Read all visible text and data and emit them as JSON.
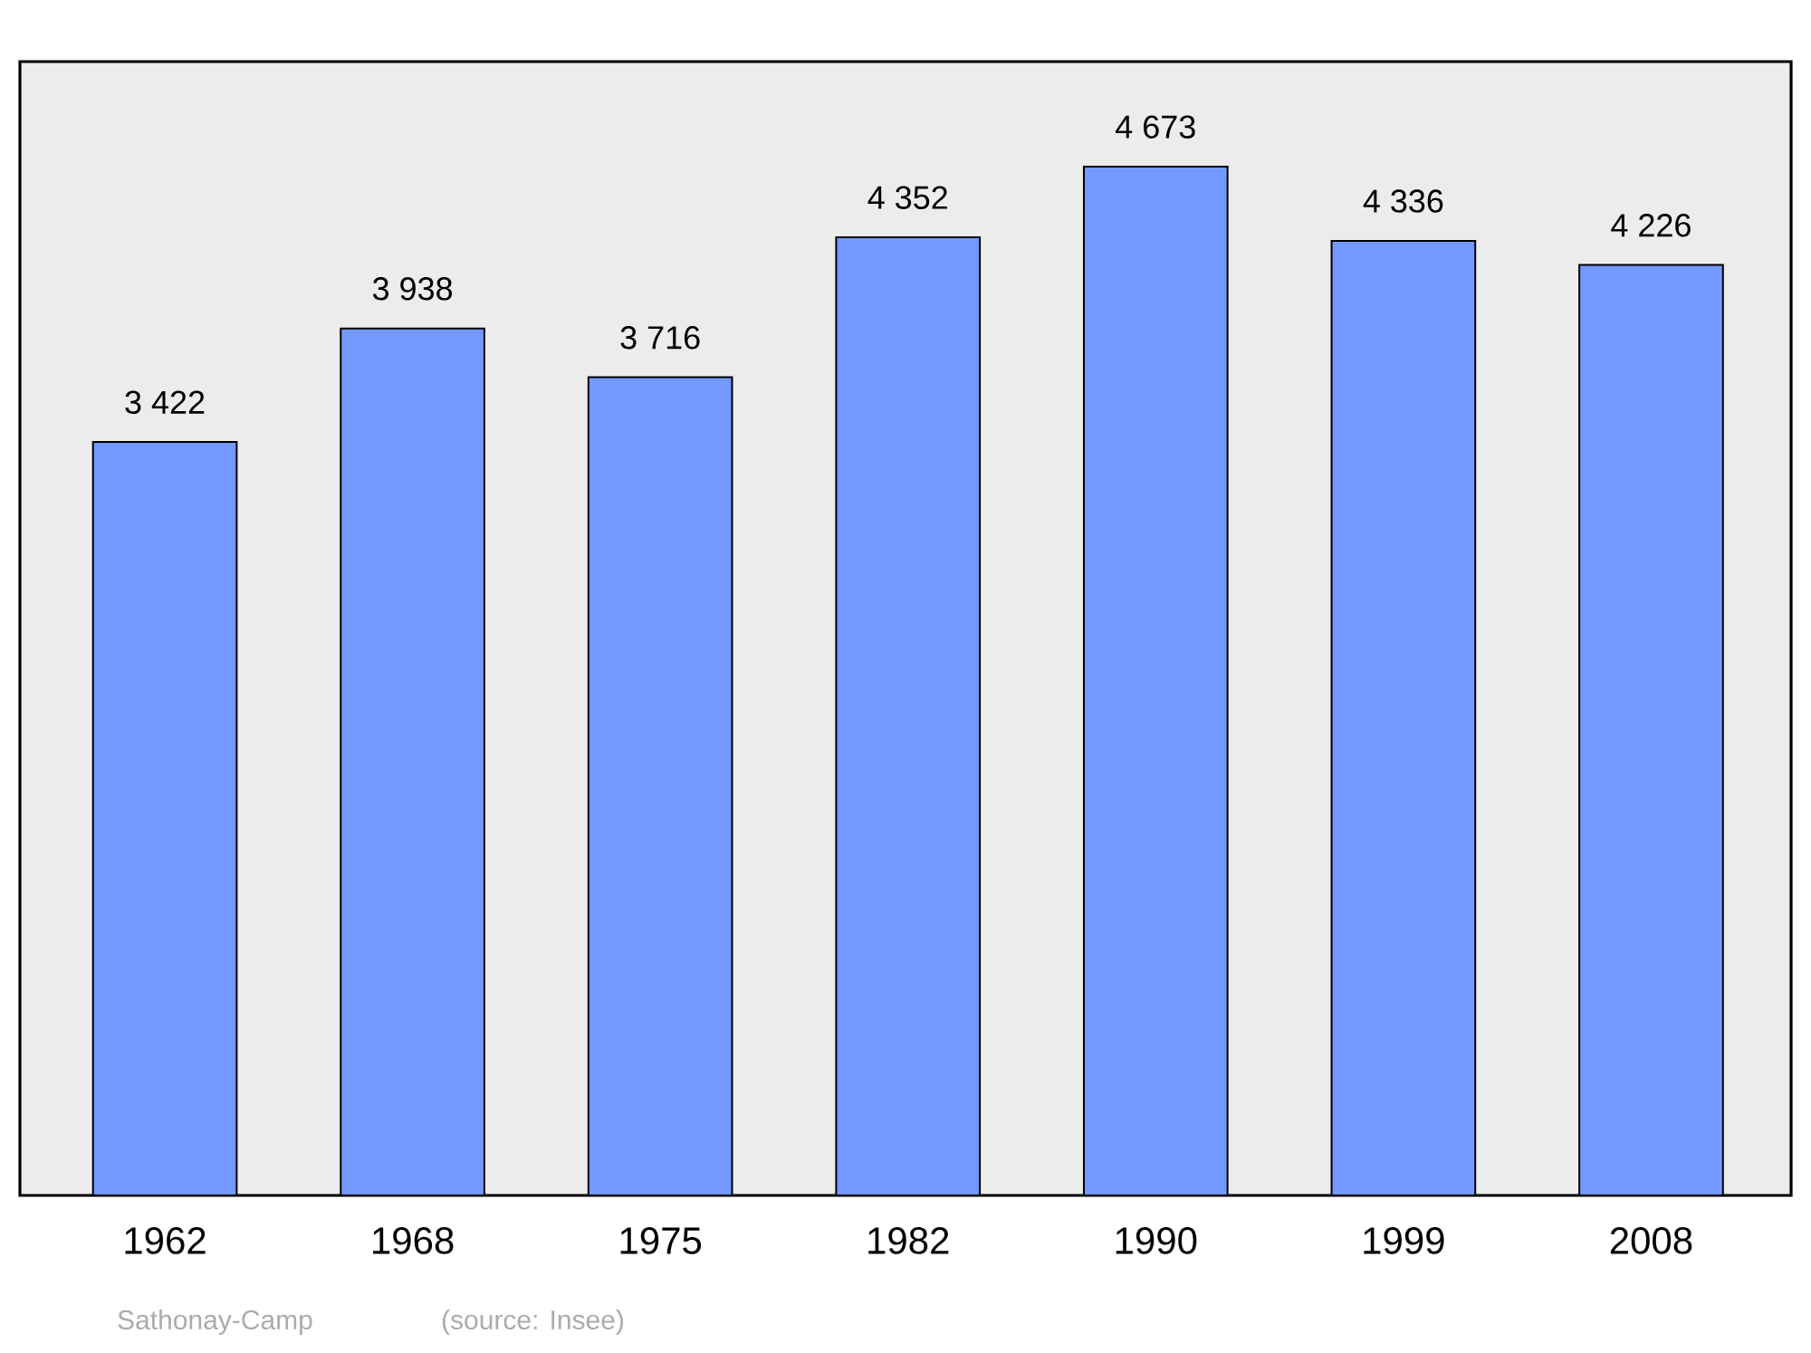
{
  "chart_data": {
    "type": "bar",
    "categories": [
      "1962",
      "1968",
      "1975",
      "1982",
      "1990",
      "1999",
      "2008"
    ],
    "values": [
      3422,
      3938,
      3716,
      4352,
      4673,
      4336,
      4226
    ],
    "value_labels": [
      "3 422",
      "3 938",
      "3 716",
      "4 352",
      "4 673",
      "4 336",
      "4 226"
    ],
    "color": "#7399ff",
    "ylim": [
      0,
      5150
    ],
    "grid": false,
    "annotations": [
      "Sathonay-Camp",
      "(source: Insee)"
    ]
  }
}
